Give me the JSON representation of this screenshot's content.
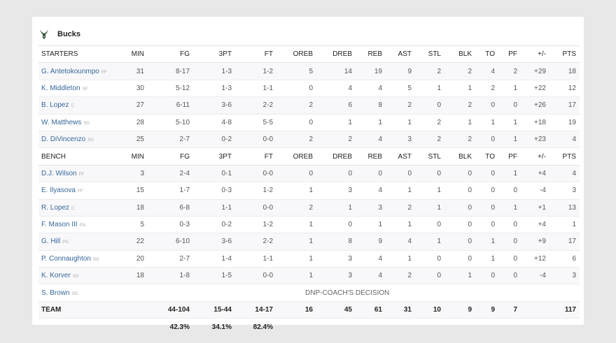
{
  "team": {
    "name": "Bucks",
    "logo": "bucks-deer-logo",
    "accent": "#2c5234"
  },
  "columns": [
    "MIN",
    "FG",
    "3PT",
    "FT",
    "OREB",
    "DREB",
    "REB",
    "AST",
    "STL",
    "BLK",
    "TO",
    "PF",
    "+/-",
    "PTS"
  ],
  "starters_label": "STARTERS",
  "bench_label": "BENCH",
  "starters": [
    {
      "name": "G. Antetokounmpo",
      "pos": "PF",
      "stats": [
        "31",
        "8-17",
        "1-3",
        "1-2",
        "5",
        "14",
        "19",
        "9",
        "2",
        "2",
        "4",
        "2",
        "+29",
        "18"
      ]
    },
    {
      "name": "K. Middleton",
      "pos": "SF",
      "stats": [
        "30",
        "5-12",
        "1-3",
        "1-1",
        "0",
        "4",
        "4",
        "5",
        "1",
        "1",
        "2",
        "1",
        "+22",
        "12"
      ]
    },
    {
      "name": "B. Lopez",
      "pos": "C",
      "stats": [
        "27",
        "6-11",
        "3-6",
        "2-2",
        "2",
        "6",
        "8",
        "2",
        "0",
        "2",
        "0",
        "0",
        "+26",
        "17"
      ]
    },
    {
      "name": "W. Matthews",
      "pos": "SG",
      "stats": [
        "28",
        "5-10",
        "4-8",
        "5-5",
        "0",
        "1",
        "1",
        "1",
        "2",
        "1",
        "1",
        "1",
        "+18",
        "19"
      ]
    },
    {
      "name": "D. DiVincenzo",
      "pos": "SG",
      "stats": [
        "25",
        "2-7",
        "0-2",
        "0-0",
        "2",
        "2",
        "4",
        "3",
        "2",
        "2",
        "0",
        "1",
        "+23",
        "4"
      ]
    }
  ],
  "bench": [
    {
      "name": "D.J. Wilson",
      "pos": "PF",
      "stats": [
        "3",
        "2-4",
        "0-1",
        "0-0",
        "0",
        "0",
        "0",
        "0",
        "0",
        "0",
        "0",
        "1",
        "+4",
        "4"
      ]
    },
    {
      "name": "E. Ilyasova",
      "pos": "PF",
      "stats": [
        "15",
        "1-7",
        "0-3",
        "1-2",
        "1",
        "3",
        "4",
        "1",
        "1",
        "0",
        "0",
        "0",
        "-4",
        "3"
      ]
    },
    {
      "name": "R. Lopez",
      "pos": "C",
      "stats": [
        "18",
        "6-8",
        "1-1",
        "0-0",
        "2",
        "1",
        "3",
        "2",
        "1",
        "0",
        "0",
        "1",
        "+1",
        "13"
      ]
    },
    {
      "name": "F. Mason III",
      "pos": "PG",
      "stats": [
        "5",
        "0-3",
        "0-2",
        "1-2",
        "1",
        "0",
        "1",
        "1",
        "0",
        "0",
        "0",
        "0",
        "+4",
        "1"
      ]
    },
    {
      "name": "G. Hill",
      "pos": "PG",
      "stats": [
        "22",
        "6-10",
        "3-6",
        "2-2",
        "1",
        "8",
        "9",
        "4",
        "1",
        "0",
        "1",
        "0",
        "+9",
        "17"
      ]
    },
    {
      "name": "P. Connaughton",
      "pos": "SG",
      "stats": [
        "20",
        "2-7",
        "1-4",
        "1-1",
        "1",
        "3",
        "4",
        "1",
        "0",
        "0",
        "1",
        "0",
        "+12",
        "6"
      ]
    },
    {
      "name": "K. Korver",
      "pos": "SG",
      "stats": [
        "18",
        "1-8",
        "1-5",
        "0-0",
        "1",
        "3",
        "4",
        "2",
        "0",
        "1",
        "0",
        "0",
        "-4",
        "3"
      ]
    }
  ],
  "dnp": {
    "name": "S. Brown",
    "pos": "SG",
    "note": "DNP-COACH'S DECISION"
  },
  "totals": {
    "label": "TEAM",
    "stats": [
      "",
      "44-104",
      "15-44",
      "14-17",
      "16",
      "45",
      "61",
      "31",
      "10",
      "9",
      "9",
      "7",
      "",
      "117"
    ]
  },
  "percentages": [
    "",
    "42.3%",
    "34.1%",
    "82.4%",
    "",
    "",
    "",
    "",
    "",
    "",
    "",
    "",
    "",
    ""
  ]
}
